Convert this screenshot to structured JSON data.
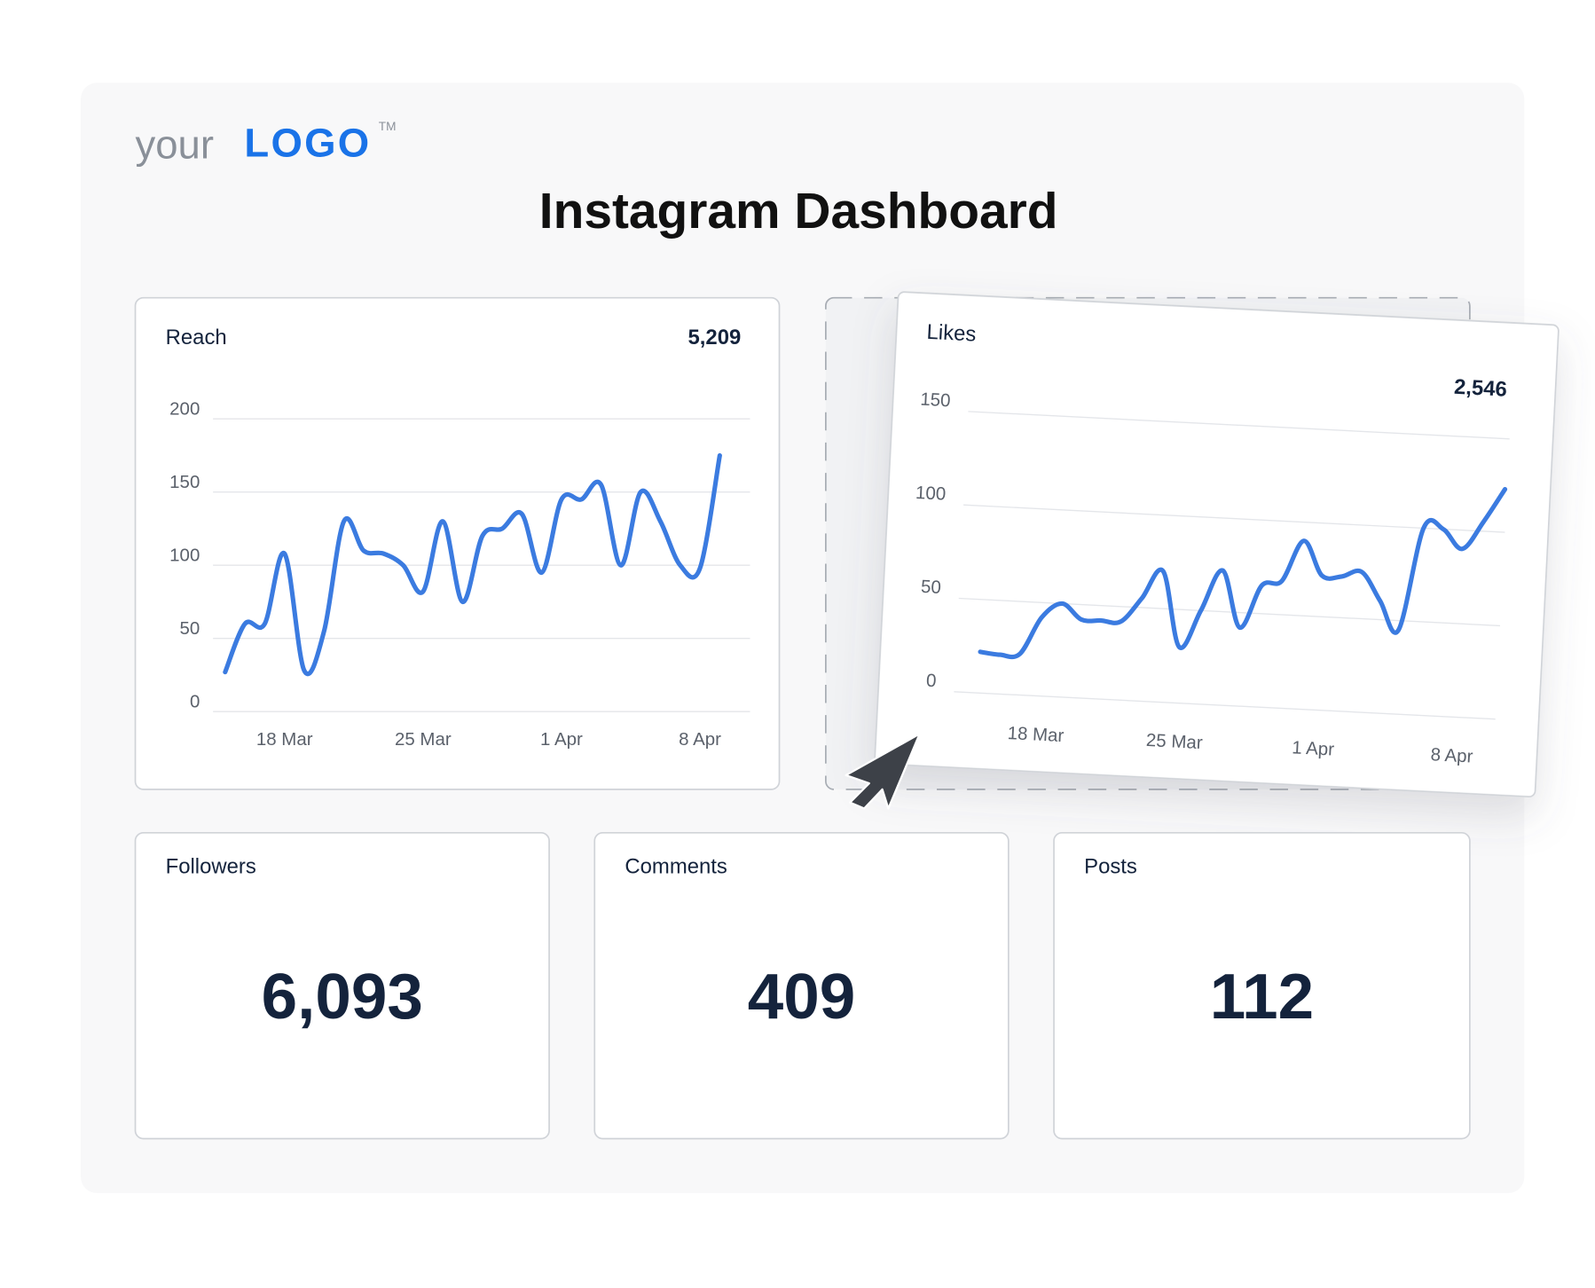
{
  "logo": {
    "prefix": "your",
    "brand": "LOGO",
    "mark": "TM"
  },
  "title": "Instagram Dashboard",
  "chart_data": [
    {
      "type": "line",
      "title": "Reach",
      "total": "5,209",
      "color": "#3b7be0",
      "grid": true,
      "categories": [
        null,
        null,
        null,
        "18 Mar",
        null,
        null,
        null,
        null,
        null,
        null,
        "25 Mar",
        null,
        null,
        null,
        null,
        null,
        null,
        "1 Apr",
        null,
        null,
        null,
        null,
        null,
        null,
        "8 Apr",
        null
      ],
      "values": [
        27,
        60,
        60,
        108,
        28,
        55,
        130,
        110,
        108,
        100,
        82,
        130,
        75,
        120,
        125,
        135,
        95,
        145,
        145,
        155,
        100,
        150,
        130,
        100,
        98,
        175
      ],
      "ylim": [
        0,
        200
      ],
      "yticks": [
        0,
        50,
        100,
        150,
        200
      ]
    },
    {
      "type": "line",
      "title": "Likes",
      "total": "2,546",
      "color": "#3b7be0",
      "grid": true,
      "categories": [
        null,
        null,
        null,
        "18 Mar",
        null,
        null,
        null,
        null,
        null,
        null,
        "25 Mar",
        null,
        null,
        null,
        null,
        null,
        null,
        "1 Apr",
        null,
        null,
        null,
        null,
        null,
        null,
        "8 Apr",
        null,
        null
      ],
      "values": [
        22,
        21,
        22,
        42,
        50,
        42,
        42,
        42,
        55,
        70,
        30,
        50,
        72,
        42,
        65,
        68,
        90,
        72,
        72,
        75,
        60,
        45,
        100,
        100,
        90,
        105,
        123
      ],
      "ylim": [
        0,
        150
      ],
      "yticks": [
        0,
        50,
        100,
        150
      ]
    }
  ],
  "kpis": [
    {
      "label": "Followers",
      "value": "6,093"
    },
    {
      "label": "Comments",
      "value": "409"
    },
    {
      "label": "Posts",
      "value": "112"
    }
  ]
}
